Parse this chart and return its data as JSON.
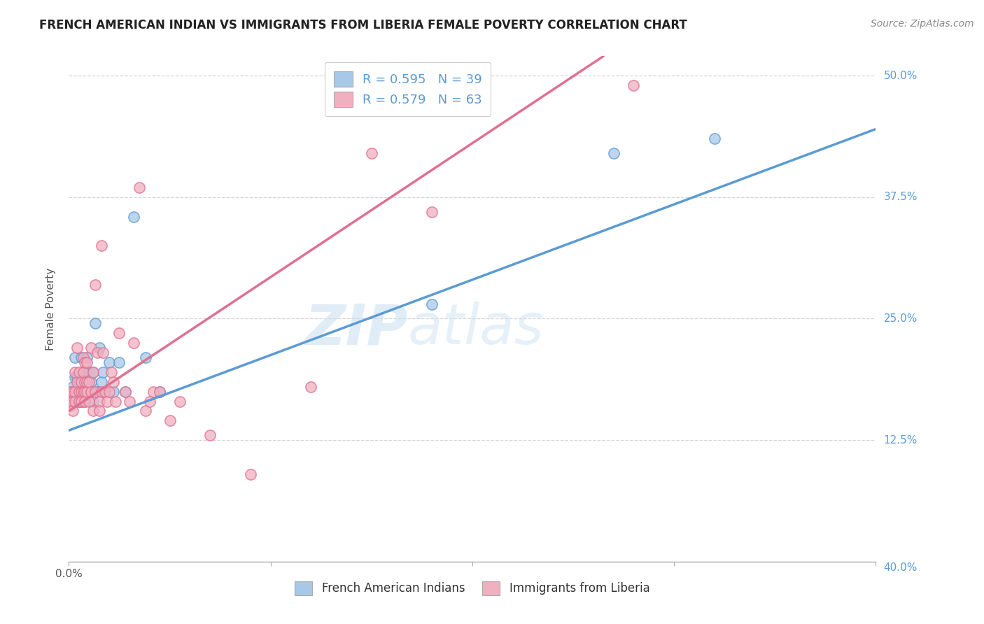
{
  "title": "FRENCH AMERICAN INDIAN VS IMMIGRANTS FROM LIBERIA FEMALE POVERTY CORRELATION CHART",
  "source": "Source: ZipAtlas.com",
  "ylabel": "Female Poverty",
  "blue_color": "#a8c8e8",
  "pink_color": "#f0b0c0",
  "blue_line_color": "#5b9bd5",
  "pink_line_color": "#e07090",
  "watermark_zip": "ZIP",
  "watermark_atlas": "atlas",
  "legend_label_blue": "French American Indians",
  "legend_label_pink": "Immigrants from Liberia",
  "blue_scatter_x": [
    0.001,
    0.002,
    0.002,
    0.003,
    0.003,
    0.004,
    0.004,
    0.005,
    0.005,
    0.005,
    0.006,
    0.006,
    0.007,
    0.007,
    0.008,
    0.008,
    0.009,
    0.009,
    0.01,
    0.01,
    0.011,
    0.012,
    0.012,
    0.013,
    0.014,
    0.015,
    0.016,
    0.017,
    0.018,
    0.02,
    0.022,
    0.025,
    0.028,
    0.032,
    0.038,
    0.045,
    0.18,
    0.27,
    0.32
  ],
  "blue_scatter_y": [
    0.175,
    0.18,
    0.17,
    0.19,
    0.21,
    0.175,
    0.19,
    0.175,
    0.165,
    0.185,
    0.21,
    0.165,
    0.185,
    0.175,
    0.195,
    0.165,
    0.21,
    0.175,
    0.195,
    0.175,
    0.185,
    0.165,
    0.195,
    0.245,
    0.175,
    0.22,
    0.185,
    0.195,
    0.175,
    0.205,
    0.175,
    0.205,
    0.175,
    0.355,
    0.21,
    0.175,
    0.265,
    0.42,
    0.435
  ],
  "pink_scatter_x": [
    0.001,
    0.001,
    0.002,
    0.002,
    0.002,
    0.003,
    0.003,
    0.003,
    0.004,
    0.004,
    0.005,
    0.005,
    0.005,
    0.006,
    0.006,
    0.006,
    0.007,
    0.007,
    0.007,
    0.008,
    0.008,
    0.008,
    0.008,
    0.009,
    0.009,
    0.009,
    0.01,
    0.01,
    0.011,
    0.011,
    0.012,
    0.012,
    0.013,
    0.013,
    0.014,
    0.015,
    0.015,
    0.016,
    0.016,
    0.017,
    0.018,
    0.019,
    0.02,
    0.021,
    0.022,
    0.023,
    0.025,
    0.028,
    0.03,
    0.032,
    0.035,
    0.038,
    0.04,
    0.042,
    0.045,
    0.05,
    0.055,
    0.07,
    0.09,
    0.12,
    0.15,
    0.18,
    0.28
  ],
  "pink_scatter_y": [
    0.16,
    0.175,
    0.175,
    0.165,
    0.155,
    0.195,
    0.175,
    0.165,
    0.22,
    0.185,
    0.175,
    0.165,
    0.195,
    0.185,
    0.175,
    0.165,
    0.21,
    0.195,
    0.175,
    0.205,
    0.185,
    0.175,
    0.165,
    0.205,
    0.185,
    0.175,
    0.185,
    0.165,
    0.22,
    0.175,
    0.195,
    0.155,
    0.285,
    0.175,
    0.215,
    0.165,
    0.155,
    0.175,
    0.325,
    0.215,
    0.175,
    0.165,
    0.175,
    0.195,
    0.185,
    0.165,
    0.235,
    0.175,
    0.165,
    0.225,
    0.385,
    0.155,
    0.165,
    0.175,
    0.175,
    0.145,
    0.165,
    0.13,
    0.09,
    0.18,
    0.42,
    0.36,
    0.49
  ],
  "xlim": [
    0.0,
    0.4
  ],
  "ylim": [
    0.0,
    0.52
  ],
  "blue_trend_x": [
    0.0,
    0.4
  ],
  "blue_trend_y": [
    0.135,
    0.445
  ],
  "pink_trend_x": [
    0.0,
    0.265
  ],
  "pink_trend_y": [
    0.155,
    0.52
  ]
}
